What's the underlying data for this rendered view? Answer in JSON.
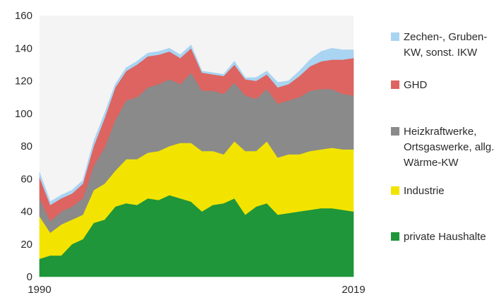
{
  "chart_data": {
    "type": "area",
    "stacked": true,
    "xlim": [
      1990,
      2019
    ],
    "ylim": [
      0,
      160
    ],
    "yticks": [
      0,
      20,
      40,
      60,
      80,
      100,
      120,
      140,
      160
    ],
    "xtick_labels": [
      "1990",
      "2019"
    ],
    "grid": false,
    "legend_position": "right",
    "x": [
      1990,
      1991,
      1992,
      1993,
      1994,
      1995,
      1996,
      1997,
      1998,
      1999,
      2000,
      2001,
      2002,
      2003,
      2004,
      2005,
      2006,
      2007,
      2008,
      2009,
      2010,
      2011,
      2012,
      2013,
      2014,
      2015,
      2016,
      2017,
      2018,
      2019
    ],
    "series": [
      {
        "name": "private Haushalte",
        "color": "#1e9639",
        "values": [
          11,
          13,
          13,
          20,
          23,
          33,
          35,
          43,
          45,
          44,
          48,
          47,
          50,
          48,
          46,
          40,
          44,
          45,
          48,
          38,
          43,
          45,
          38,
          39,
          40,
          41,
          42,
          42,
          41,
          40
        ]
      },
      {
        "name": "Industrie",
        "color": "#f2e400",
        "values": [
          26,
          14,
          19,
          15,
          15,
          20,
          22,
          22,
          27,
          28,
          28,
          30,
          30,
          34,
          36,
          37,
          33,
          30,
          35,
          39,
          34,
          38,
          35,
          36,
          35,
          36,
          36,
          37,
          37,
          38
        ]
      },
      {
        "name": "Heizkraftwerke, Ortsgaswerke, allg. Wärme-KW",
        "color": "#8a8a8a",
        "values": [
          11,
          7,
          8,
          8,
          10,
          15,
          22,
          31,
          36,
          38,
          40,
          41,
          41,
          36,
          43,
          37,
          37,
          37,
          36,
          34,
          32,
          32,
          33,
          33,
          35,
          37,
          37,
          36,
          34,
          33
        ]
      },
      {
        "name": "GHD",
        "color": "#dd6460",
        "values": [
          13,
          10,
          8,
          8,
          9,
          12,
          18,
          20,
          18,
          20,
          19,
          18,
          17,
          16,
          15,
          11,
          10,
          11,
          11,
          10,
          11,
          9,
          10,
          10,
          13,
          15,
          17,
          18,
          21,
          23
        ]
      },
      {
        "name": "Zechen-, Gruben-KW, sonst. IKW",
        "color": "#a9d4f2",
        "values": [
          3,
          2,
          2,
          2,
          2,
          3,
          3,
          2,
          2,
          2,
          2,
          2,
          2,
          2,
          2,
          1,
          1,
          1,
          2,
          1,
          2,
          2,
          3,
          2,
          3,
          4,
          6,
          7,
          6,
          5
        ]
      }
    ],
    "legend": [
      {
        "lines": [
          "Zechen-, Gruben-",
          "KW, sonst. IKW"
        ],
        "color": "#a9d4f2"
      },
      {
        "lines": [
          "GHD"
        ],
        "color": "#dd6460"
      },
      {
        "lines": [
          "Heizkraftwerke,",
          "Ortsgaswerke, allg.",
          "Wärme-KW"
        ],
        "color": "#8a8a8a"
      },
      {
        "lines": [
          "Industrie"
        ],
        "color": "#f2e400"
      },
      {
        "lines": [
          "private Haushalte"
        ],
        "color": "#1e9639"
      }
    ]
  }
}
